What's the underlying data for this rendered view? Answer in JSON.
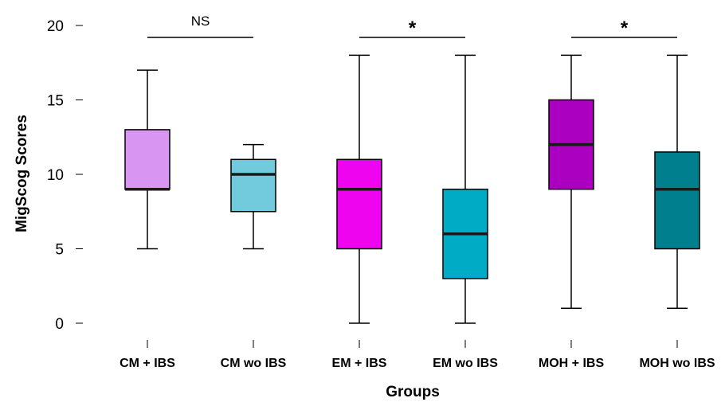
{
  "chart_data": {
    "type": "box",
    "xlabel": "Groups",
    "ylabel": "MigScog Scores",
    "ylim": [
      0,
      20
    ],
    "yticks": [
      0,
      5,
      10,
      15,
      20
    ],
    "categories": [
      "CM + IBS",
      "CM wo IBS",
      "EM + IBS",
      "EM wo IBS",
      "MOH + IBS",
      "MOH wo IBS"
    ],
    "boxes": [
      {
        "category": "CM + IBS",
        "min": 5,
        "q1": 9,
        "median": 9,
        "q3": 13,
        "max": 17,
        "color": "#d896f2"
      },
      {
        "category": "CM wo IBS",
        "min": 5,
        "q1": 7.5,
        "median": 10,
        "q3": 11,
        "max": 12,
        "color": "#72cbdd"
      },
      {
        "category": "EM + IBS",
        "min": 0,
        "q1": 5,
        "median": 9,
        "q3": 11,
        "max": 18,
        "color": "#ee04ee"
      },
      {
        "category": "EM wo IBS",
        "min": 0,
        "q1": 3,
        "median": 6,
        "q3": 9,
        "max": 18,
        "color": "#00acc5"
      },
      {
        "category": "MOH + IBS",
        "min": 1,
        "q1": 9,
        "median": 12,
        "q3": 15,
        "max": 18,
        "color": "#ac00c0"
      },
      {
        "category": "MOH wo IBS",
        "min": 1,
        "q1": 5,
        "median": 9,
        "q3": 11.5,
        "max": 18,
        "color": "#00808f"
      }
    ],
    "significance": [
      {
        "pair": [
          "CM + IBS",
          "CM wo IBS"
        ],
        "label": "NS"
      },
      {
        "pair": [
          "EM + IBS",
          "EM wo IBS"
        ],
        "label": "*"
      },
      {
        "pair": [
          "MOH + IBS",
          "MOH wo IBS"
        ],
        "label": "*"
      }
    ],
    "grid": false,
    "legend": "none"
  }
}
